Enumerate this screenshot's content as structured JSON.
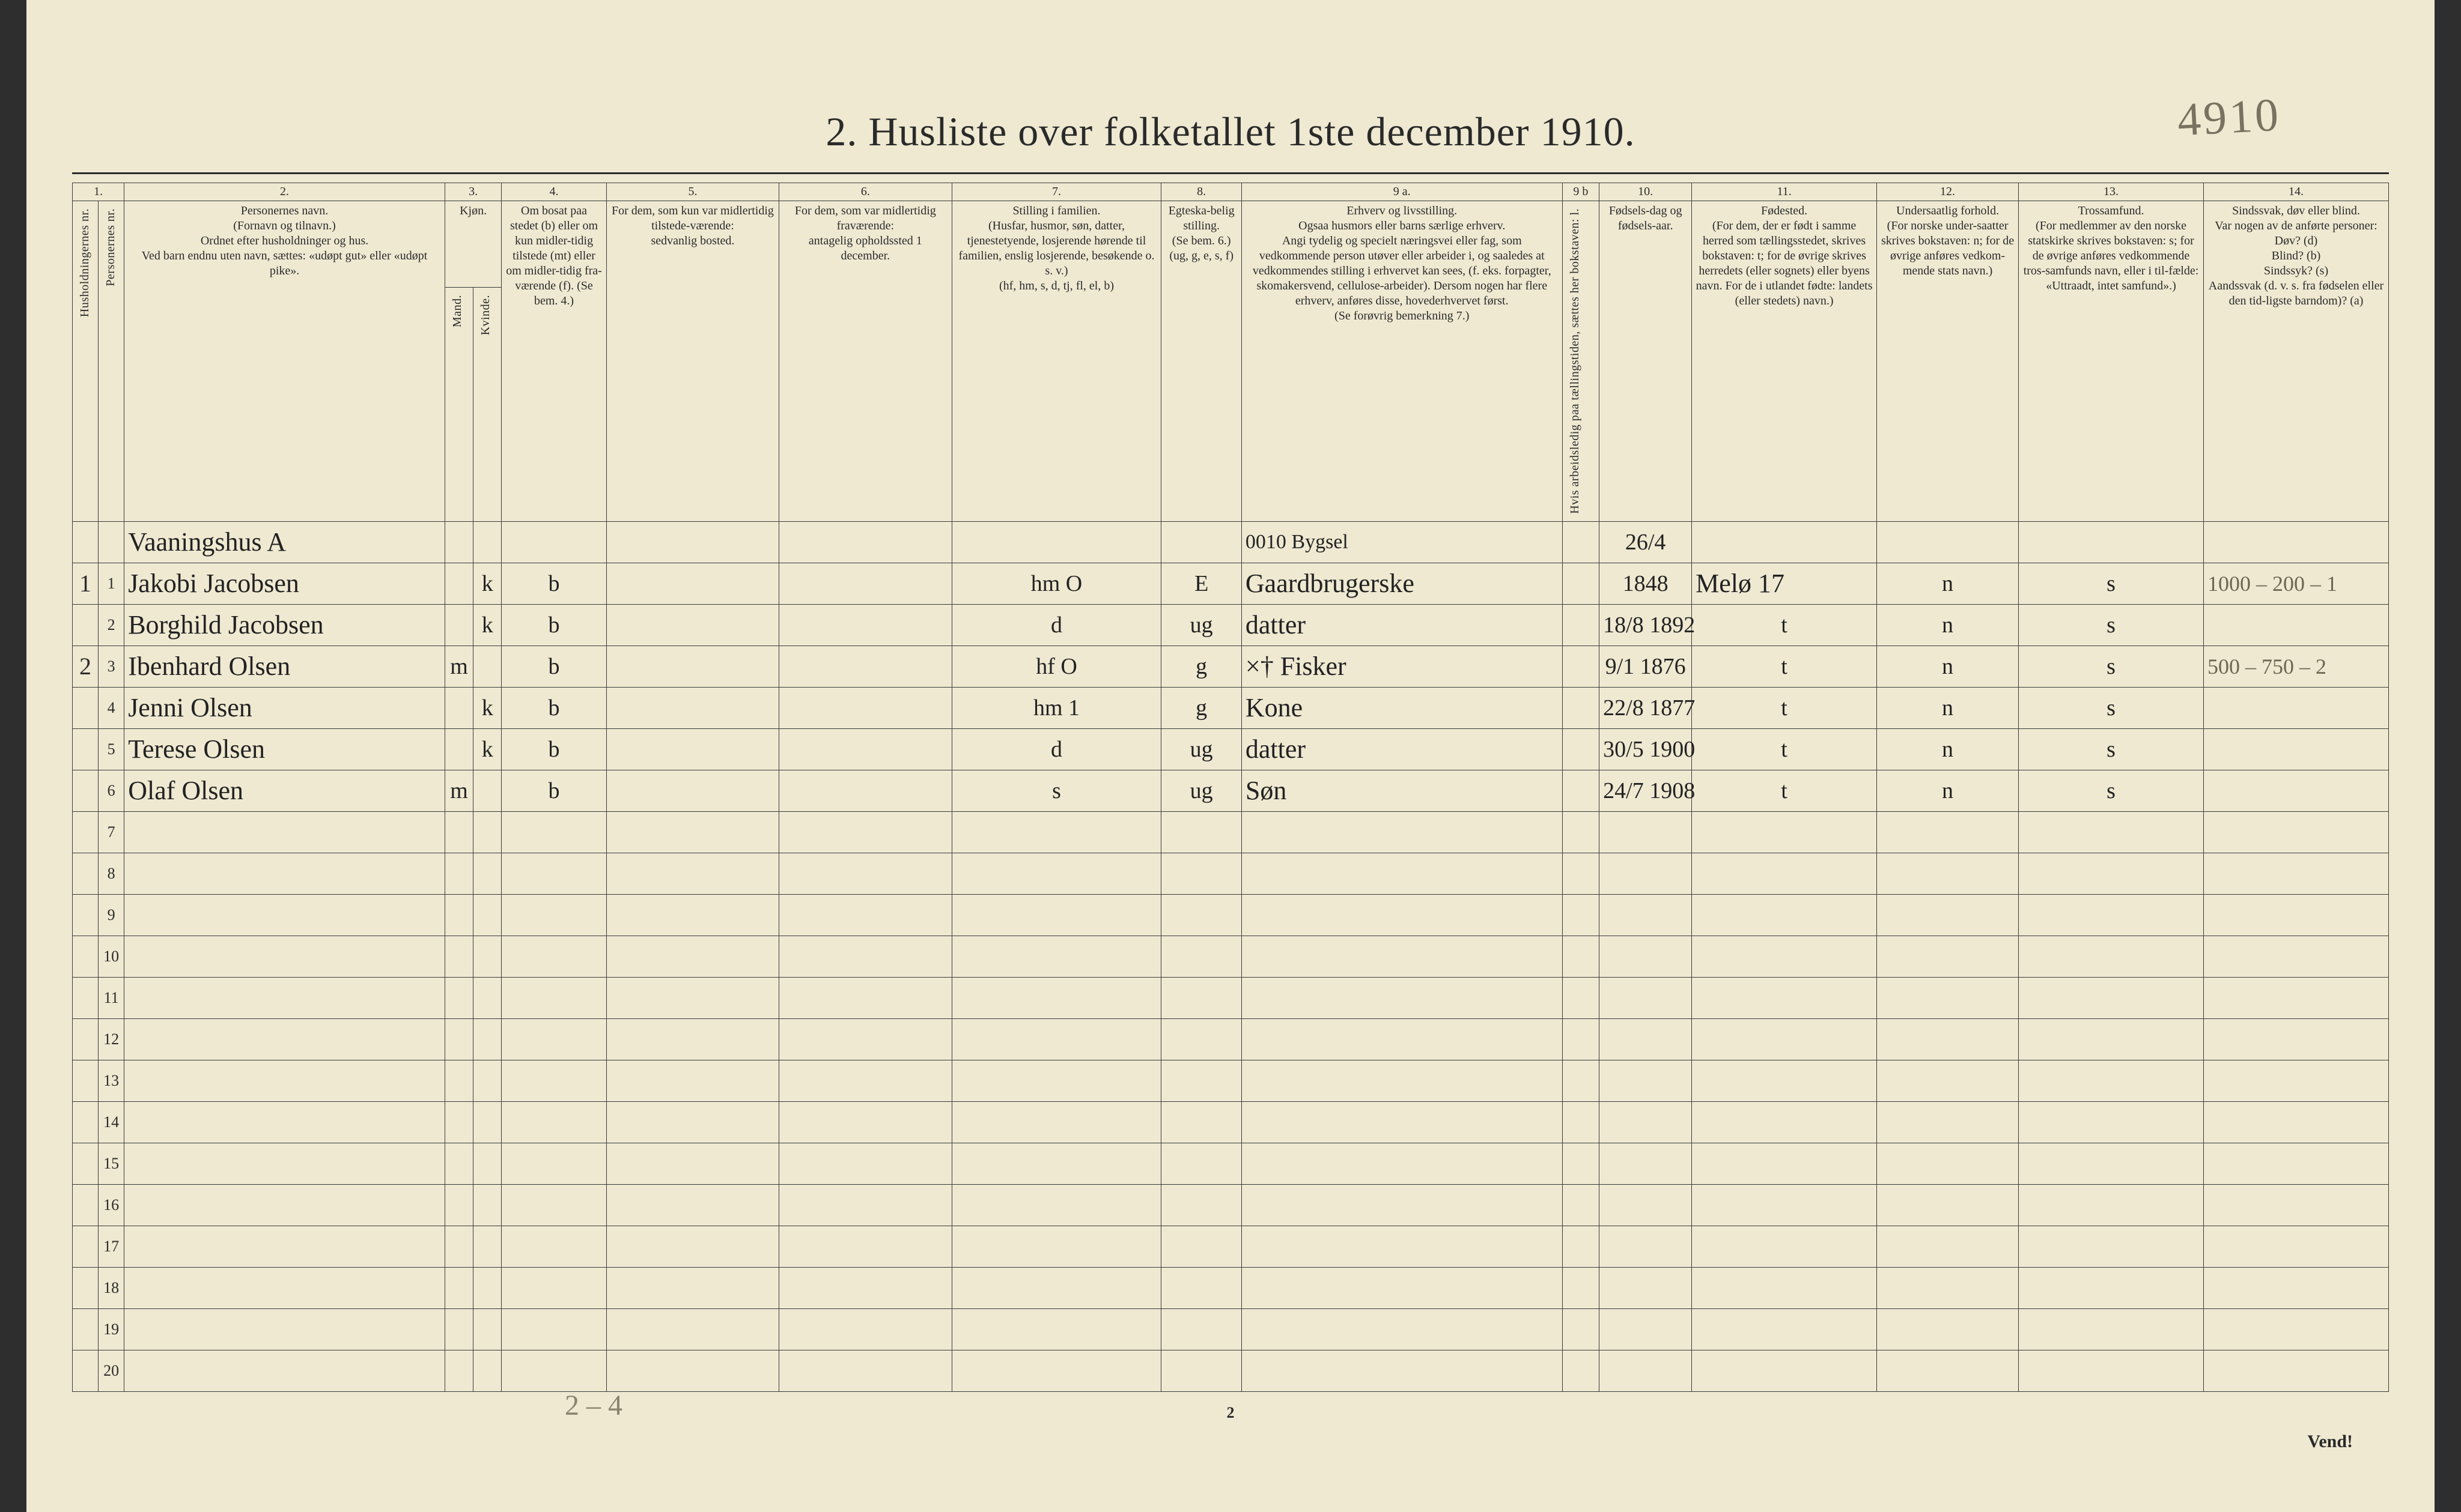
{
  "colors": {
    "paper": "#efe9d2",
    "ink": "#2a2a2a",
    "pencil": "#7a7260",
    "edge": "#2e2e2e",
    "rule": "#3a3a3a"
  },
  "pencil_top_right": "4910",
  "title": "2.   Husliste over folketallet 1ste december 1910.",
  "col_numbers": [
    "1.",
    "2.",
    "3.",
    "4.",
    "5.",
    "6.",
    "7.",
    "8.",
    "9 a.",
    "9 b",
    "10.",
    "11.",
    "12.",
    "13.",
    "14."
  ],
  "headers": {
    "c1a": "Husholdningernes nr.",
    "c1b": "Personernes nr.",
    "c2": "Personernes navn.\n(Fornavn og tilnavn.)\nOrdnet efter husholdninger og hus.\nVed barn endnu uten navn, sættes: «udøpt gut» eller «udøpt pike».",
    "c3": "Kjøn.",
    "c3a": "Mand.",
    "c3b": "Kvinde.",
    "c3_sub": "m.   k.",
    "c4": "Om bosat paa stedet (b) eller om kun midler-tidig tilstede (mt) eller om midler-tidig fra-værende (f). (Se bem. 4.)",
    "c5": "For dem, som kun var midlertidig tilstede-værende:\nsedvanlig bosted.",
    "c6": "For dem, som var midlertidig fraværende:\nantagelig opholdssted 1 december.",
    "c7": "Stilling i familien.\n(Husfar, husmor, søn, datter, tjenestetyende, losjerende hørende til familien, enslig losjerende, besøkende o. s. v.)\n(hf, hm, s, d, tj, fl, el, b)",
    "c8": "Egteska-belig stilling.\n(Se bem. 6.)\n(ug, g, e, s, f)",
    "c9a": "Erhverv og livsstilling.\nOgsaa husmors eller barns særlige erhverv.\nAngi tydelig og specielt næringsvei eller fag, som vedkommende person utøver eller arbeider i, og saaledes at vedkommendes stilling i erhvervet kan sees, (f. eks. forpagter, skomakersvend, cellulose-arbeider). Dersom nogen har flere erhverv, anføres disse, hovederhvervet først.\n(Se forøvrig bemerkning 7.)",
    "c9b": "Hvis arbeidsledig paa tællingstiden, sættes her bokstaven: l.",
    "c10": "Fødsels-dag og fødsels-aar.",
    "c11": "Fødested.\n(For dem, der er født i samme herred som tællingsstedet, skrives bokstaven: t; for de øvrige skrives herredets (eller sognets) eller byens navn. For de i utlandet fødte: landets (eller stedets) navn.)",
    "c12": "Undersaatlig forhold.\n(For norske under-saatter skrives bokstaven: n; for de øvrige anføres vedkom-mende stats navn.)",
    "c13": "Trossamfund.\n(For medlemmer av den norske statskirke skrives bokstaven: s; for de øvrige anføres vedkommende tros-samfunds navn, eller i til-fælde: «Uttraadt, intet samfund».)",
    "c14": "Sindssvak, døv eller blind.\nVar nogen av de anførte personer:\nDøv?      (d)\nBlind?    (b)\nSindssyk? (s)\nAandssvak (d. v. s. fra fødselen eller den tid-ligste barndom)?  (a)"
  },
  "heading_row": {
    "name": "Vaaningshus A"
  },
  "super_row": {
    "c9a": "0010  Bygsel",
    "c10": "26/4"
  },
  "rows": [
    {
      "hh": "1",
      "pn": "1",
      "name": "Jakobi Jacobsen",
      "mk_m": "",
      "mk_k": "k",
      "bmtf": "b",
      "c7": "hm   O",
      "c8": "E",
      "c9a": "Gaardbrugerske",
      "c10": "1848",
      "c11": "Melø  17",
      "c12": "n",
      "c13": "s",
      "c14": "1000 – 200 – 1"
    },
    {
      "hh": "",
      "pn": "2",
      "name": "Borghild Jacobsen",
      "mk_m": "",
      "mk_k": "k",
      "bmtf": "b",
      "c7": "d",
      "c8": "ug",
      "c9a": "datter",
      "c10": "18/8 1892",
      "c11": "t",
      "c12": "n",
      "c13": "s",
      "c14": ""
    },
    {
      "hh": "2",
      "pn": "3",
      "name": "Ibenhard Olsen",
      "mk_m": "m",
      "mk_k": "",
      "bmtf": "b",
      "c7": "hf   O",
      "c8": "g",
      "c9a": "×† Fisker",
      "c10": "9/1 1876",
      "c11": "t",
      "c12": "n",
      "c13": "s",
      "c14": "500 – 750 – 2"
    },
    {
      "hh": "",
      "pn": "4",
      "name": "Jenni Olsen",
      "mk_m": "",
      "mk_k": "k",
      "bmtf": "b",
      "c7": "hm   1",
      "c8": "g",
      "c9a": "Kone",
      "c10": "22/8 1877",
      "c11": "t",
      "c12": "n",
      "c13": "s",
      "c14": ""
    },
    {
      "hh": "",
      "pn": "5",
      "name": "Terese Olsen",
      "mk_m": "",
      "mk_k": "k",
      "bmtf": "b",
      "c7": "d",
      "c8": "ug",
      "c9a": "datter",
      "c10": "30/5 1900",
      "c11": "t",
      "c12": "n",
      "c13": "s",
      "c14": ""
    },
    {
      "hh": "",
      "pn": "6",
      "name": "Olaf Olsen",
      "mk_m": "m",
      "mk_k": "",
      "bmtf": "b",
      "c7": "s",
      "c8": "ug",
      "c9a": "Søn",
      "c10": "24/7 1908",
      "c11": "t",
      "c12": "n",
      "c13": "s",
      "c14": ""
    }
  ],
  "empty_row_numbers": [
    "7",
    "8",
    "9",
    "10",
    "11",
    "12",
    "13",
    "14",
    "15",
    "16",
    "17",
    "18",
    "19",
    "20"
  ],
  "page_footer": "2",
  "vend": "Vend!",
  "pencil_bottom": "2 – 4"
}
